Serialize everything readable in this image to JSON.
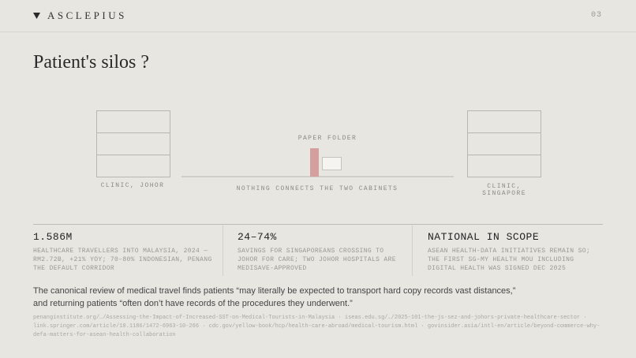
{
  "header": {
    "brand": "ASCLEPIUS",
    "page_number": "03"
  },
  "title": "Patient's silos ?",
  "diagram": {
    "left_cabinet": "CLINIC, JOHOR",
    "folder_label": "PAPER FOLDER",
    "gap_caption": "NOTHING CONNECTS THE TWO CABINETS",
    "right_cabinet": "CLINIC, SINGAPORE"
  },
  "stats": [
    {
      "value": "1.586M",
      "description": "HEALTHCARE TRAVELLERS INTO MALAYSIA, 2024 — RM2.72B, +21% YOY; 70–80% INDONESIAN, PENANG THE DEFAULT CORRIDOR"
    },
    {
      "value": "24–74%",
      "description": "SAVINGS FOR SINGAPOREANS CROSSING TO JOHOR FOR CARE; TWO JOHOR HOSPITALS ARE MEDISAVE-APPROVED"
    },
    {
      "value": "NATIONAL IN SCOPE",
      "description": "ASEAN HEALTH-DATA INITIATIVES REMAIN SO; THE FIRST SG–MY HEALTH MOU INCLUDING DIGITAL HEALTH WAS SIGNED DEC 2025"
    }
  ],
  "quote": "The canonical review of medical travel finds patients “may literally be expected to transport hard copy records vast distances,” and returning patients “often don’t have records of the procedures they underwent.”",
  "sources": "penanginstitute.org/…/Assessing-the-Impact-of-Increased-SST-on-Medical-Tourists-in-Malaysia · iseas.edu.sg/…/2025-101-the-js-sez-and-johors-private-healthcare-sector · link.springer.com/article/10.1186/1472-6963-10-266 · cdc.gov/yellow-book/hcp/health-care-abroad/medical-tourism.html · govinsider.asia/intl-en/article/beyond-commerce-why-defa-matters-for-asean-health-collaboration"
}
